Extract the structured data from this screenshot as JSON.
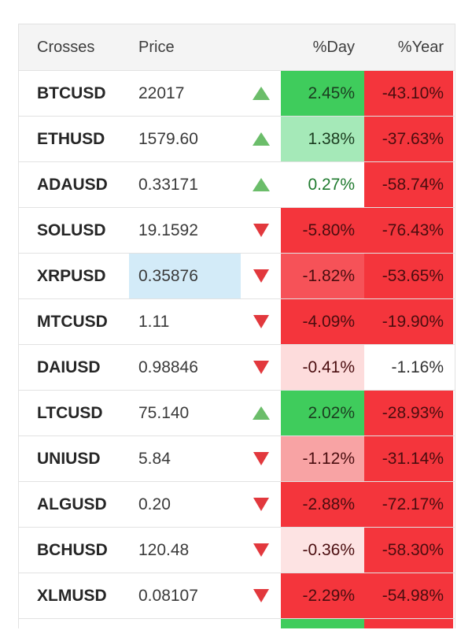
{
  "header": {
    "crosses": "Crosses",
    "price": "Price",
    "day": "%Day",
    "year": "%Year"
  },
  "colors": {
    "strong_green": "#3dcc5a",
    "light_green": "#a3e8b7",
    "strong_red": "#f4353c",
    "medium_red": "#f76a6f",
    "light_red": "#f8a5a5",
    "pale_red": "#fde0e0",
    "highlight_blue": "#d3ebf8",
    "arrow_up": "#6bbd6a",
    "arrow_down": "#e2383d"
  },
  "rows": [
    {
      "symbol": "BTCUSD",
      "price": "22017",
      "direction": "up",
      "day": "2.45%",
      "year": "-43.10%",
      "day_color": "#3fcc5c",
      "year_color": "#f4353c",
      "day_text": "#1b3d20",
      "year_text": "#4a0d0f",
      "price_highlight": false
    },
    {
      "symbol": "ETHUSD",
      "price": "1579.60",
      "direction": "up",
      "day": "1.38%",
      "year": "-37.63%",
      "day_color": "#a5e9b8",
      "year_color": "#f4353c",
      "day_text": "#1b3d20",
      "year_text": "#4a0d0f",
      "price_highlight": false
    },
    {
      "symbol": "ADAUSD",
      "price": "0.33171",
      "direction": "up",
      "day": "0.27%",
      "year": "-58.74%",
      "day_color": "#ffffff",
      "year_color": "#f4353c",
      "day_text": "#1f7a2e",
      "year_text": "#4a0d0f",
      "price_highlight": false
    },
    {
      "symbol": "SOLUSD",
      "price": "19.1592",
      "direction": "down",
      "day": "-5.80%",
      "year": "-76.43%",
      "day_color": "#f4353c",
      "year_color": "#f4353c",
      "day_text": "#4a0d0f",
      "year_text": "#4a0d0f",
      "price_highlight": false
    },
    {
      "symbol": "XRPUSD",
      "price": "0.35876",
      "direction": "down",
      "day": "-1.82%",
      "year": "-53.65%",
      "day_color": "#f65258",
      "year_color": "#f4353c",
      "day_text": "#4a0d0f",
      "year_text": "#4a0d0f",
      "price_highlight": true
    },
    {
      "symbol": "MTCUSD",
      "price": "1.11",
      "direction": "down",
      "day": "-4.09%",
      "year": "-19.90%",
      "day_color": "#f4353c",
      "year_color": "#f4353c",
      "day_text": "#4a0d0f",
      "year_text": "#4a0d0f",
      "price_highlight": false
    },
    {
      "symbol": "DAIUSD",
      "price": "0.98846",
      "direction": "down",
      "day": "-0.41%",
      "year": "-1.16%",
      "day_color": "#fddcdc",
      "year_color": "#ffffff",
      "day_text": "#4a0d0f",
      "year_text": "#333333",
      "price_highlight": false
    },
    {
      "symbol": "LTCUSD",
      "price": "75.140",
      "direction": "up",
      "day": "2.02%",
      "year": "-28.93%",
      "day_color": "#3fcc5c",
      "year_color": "#f4353c",
      "day_text": "#1b3d20",
      "year_text": "#4a0d0f",
      "price_highlight": false
    },
    {
      "symbol": "UNIUSD",
      "price": "5.84",
      "direction": "down",
      "day": "-1.12%",
      "year": "-31.14%",
      "day_color": "#f8a3a4",
      "year_color": "#f4353c",
      "day_text": "#4a0d0f",
      "year_text": "#4a0d0f",
      "price_highlight": false
    },
    {
      "symbol": "ALGUSD",
      "price": "0.20",
      "direction": "down",
      "day": "-2.88%",
      "year": "-72.17%",
      "day_color": "#f4353c",
      "year_color": "#f4353c",
      "day_text": "#4a0d0f",
      "year_text": "#4a0d0f",
      "price_highlight": false
    },
    {
      "symbol": "BCHUSD",
      "price": "120.48",
      "direction": "down",
      "day": "-0.36%",
      "year": "-58.30%",
      "day_color": "#fde3e3",
      "year_color": "#f4353c",
      "day_text": "#4a0d0f",
      "year_text": "#4a0d0f",
      "price_highlight": false
    },
    {
      "symbol": "XLMUSD",
      "price": "0.08107",
      "direction": "down",
      "day": "-2.29%",
      "year": "-54.98%",
      "day_color": "#f4353c",
      "year_color": "#f4353c",
      "day_text": "#4a0d0f",
      "year_text": "#4a0d0f",
      "price_highlight": false
    }
  ]
}
